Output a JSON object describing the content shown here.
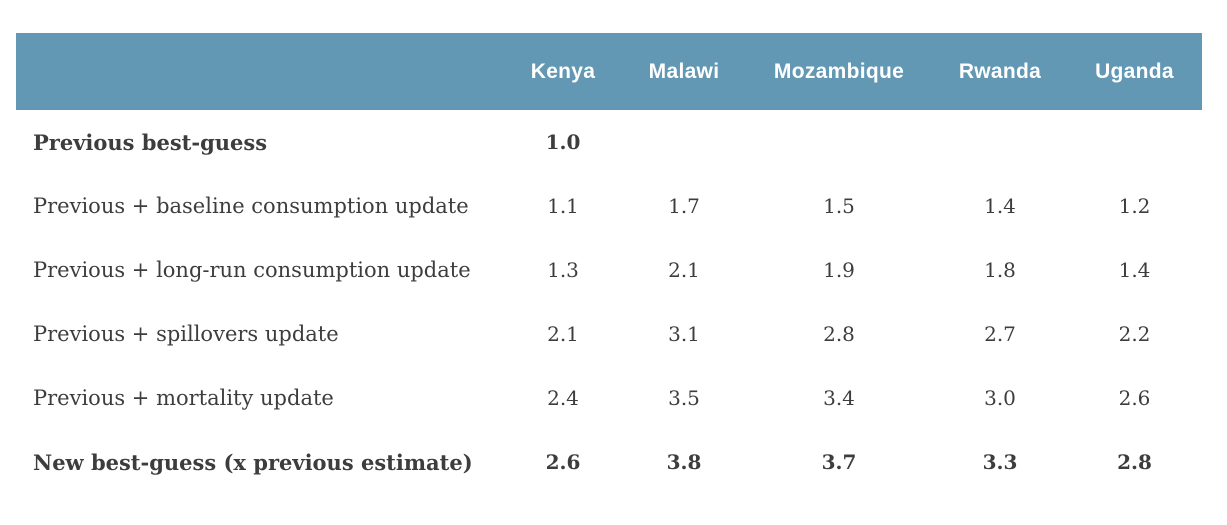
{
  "colors": {
    "header_bg": "#6298b4",
    "header_text": "#ffffff",
    "body_text": "#3d3d3d",
    "background": "#ffffff"
  },
  "chart_data": {
    "type": "table",
    "columns": [
      "",
      "Kenya",
      "Malawi",
      "Mozambique",
      "Rwanda",
      "Uganda"
    ],
    "rows": [
      {
        "label": "Previous best-guess",
        "bold": true,
        "values": [
          "1.0",
          "",
          "",
          "",
          ""
        ]
      },
      {
        "label": "Previous + baseline consumption update",
        "bold": false,
        "values": [
          "1.1",
          "1.7",
          "1.5",
          "1.4",
          "1.2"
        ]
      },
      {
        "label": "Previous + long-run consumption update",
        "bold": false,
        "values": [
          "1.3",
          "2.1",
          "1.9",
          "1.8",
          "1.4"
        ]
      },
      {
        "label": "Previous + spillovers update",
        "bold": false,
        "values": [
          "2.1",
          "3.1",
          "2.8",
          "2.7",
          "2.2"
        ]
      },
      {
        "label": "Previous + mortality update",
        "bold": false,
        "values": [
          "2.4",
          "3.5",
          "3.4",
          "3.0",
          "2.6"
        ]
      },
      {
        "label": "New best-guess (x previous estimate)",
        "bold": true,
        "values": [
          "2.6",
          "3.8",
          "3.7",
          "3.3",
          "2.8"
        ]
      }
    ]
  }
}
